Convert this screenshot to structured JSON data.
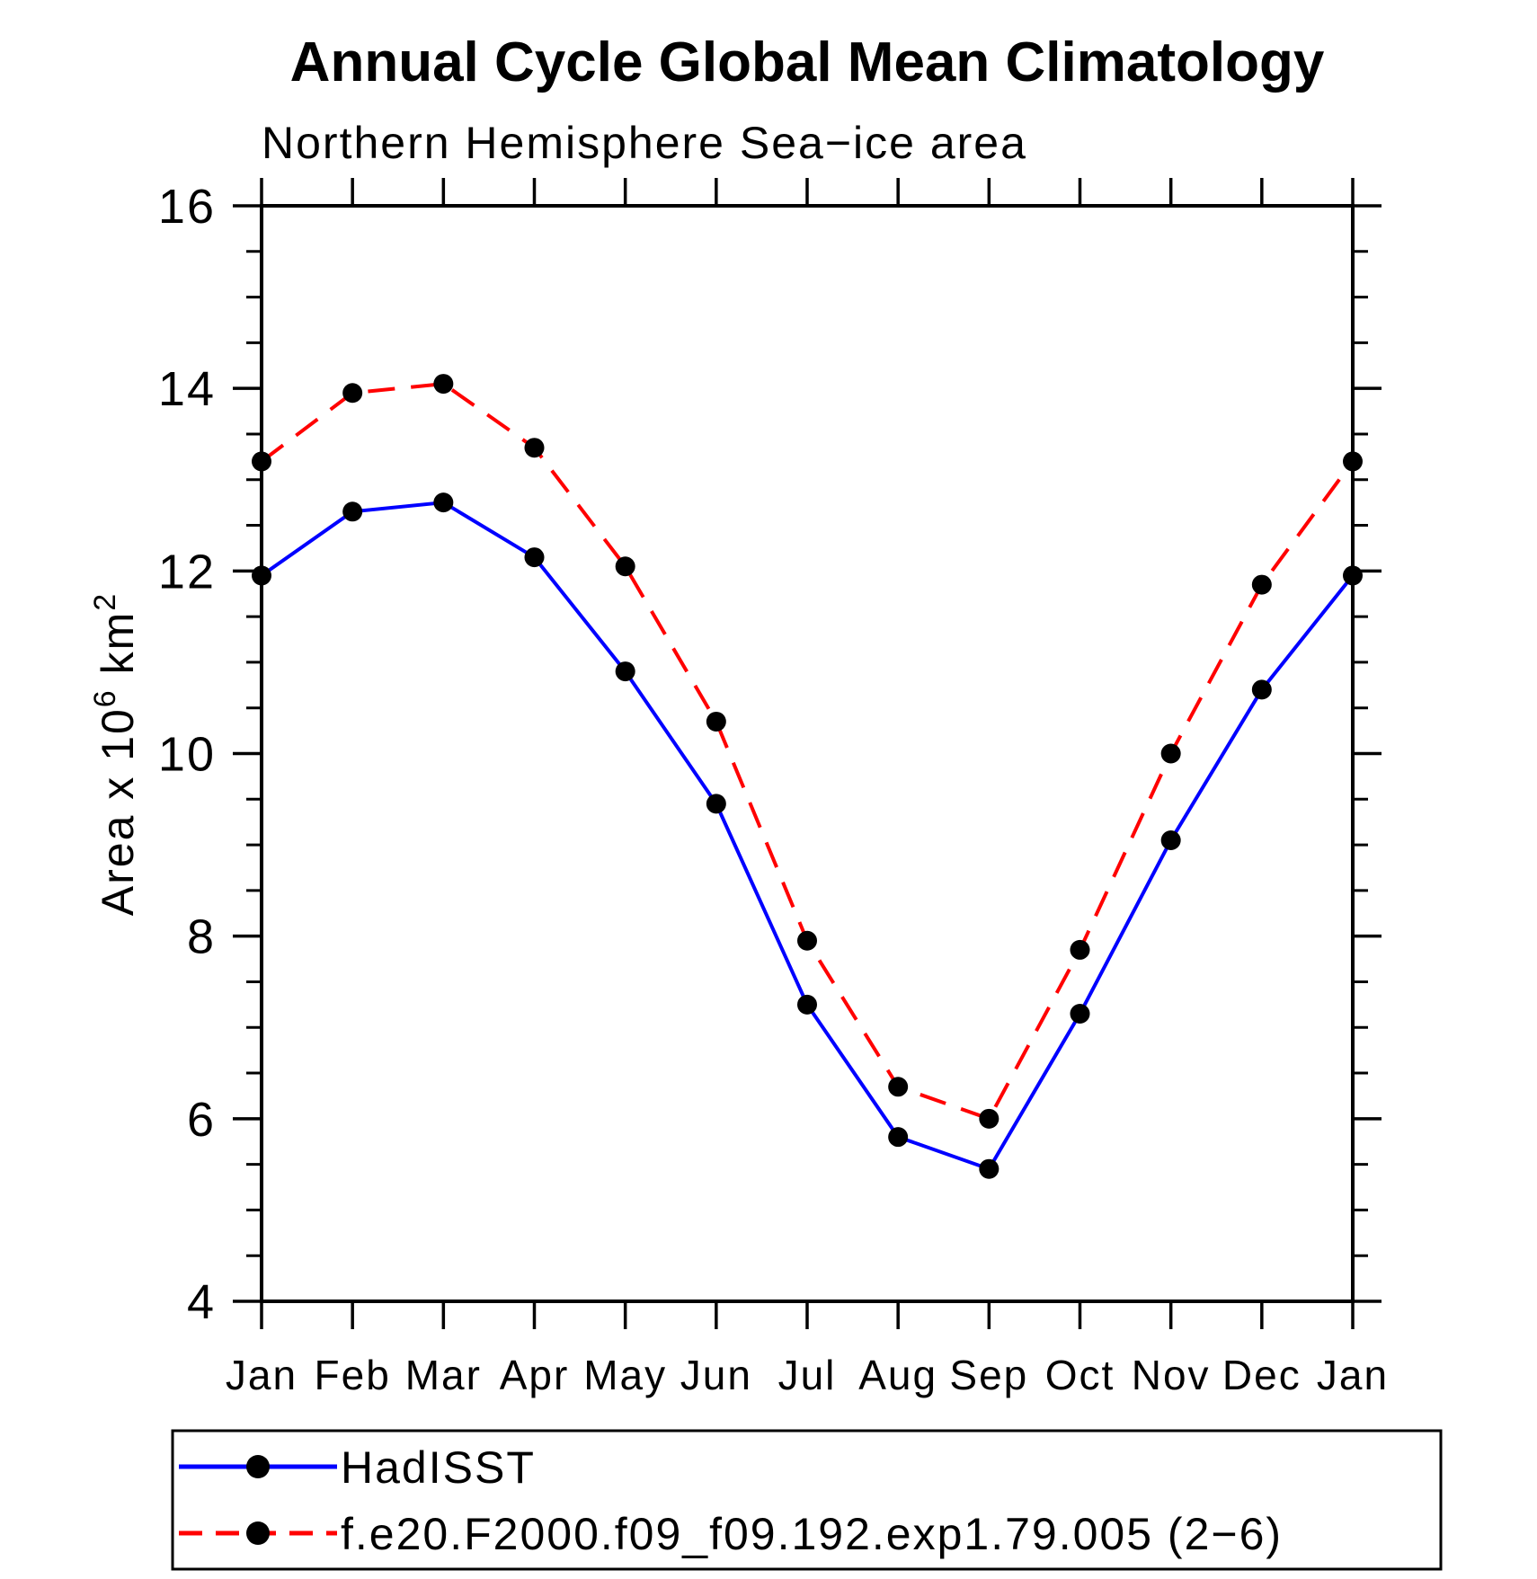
{
  "header": {
    "title": "Annual Cycle Global Mean Climatology",
    "subtitle": "Northern Hemisphere Sea−ice area"
  },
  "chart_data": {
    "type": "line",
    "title": "Annual Cycle Global Mean Climatology",
    "subtitle": "Northern Hemisphere Sea−ice area",
    "categories": [
      "Jan",
      "Feb",
      "Mar",
      "Apr",
      "May",
      "Jun",
      "Jul",
      "Aug",
      "Sep",
      "Oct",
      "Nov",
      "Dec",
      "Jan"
    ],
    "series": [
      {
        "name": "HadISST",
        "color": "#0000ff",
        "line_style": "solid",
        "marker": "filled-circle",
        "marker_color": "#000000",
        "values": [
          11.95,
          12.65,
          12.75,
          12.15,
          10.9,
          9.45,
          7.25,
          5.8,
          5.45,
          7.15,
          9.05,
          10.7,
          11.95
        ]
      },
      {
        "name": "f.e20.F2000.f09_f09.192.exp1.79.005 (2−6)",
        "color": "#ff0000",
        "line_style": "dashed",
        "marker": "filled-circle",
        "marker_color": "#000000",
        "values": [
          13.2,
          13.95,
          14.05,
          13.35,
          12.05,
          10.35,
          7.95,
          6.35,
          6.0,
          7.85,
          10.0,
          11.85,
          13.2
        ]
      }
    ],
    "xlabel": "",
    "ylabel": "Area x 10^6 km^2",
    "ylabel_parts": {
      "base": "Area x 10",
      "exponent": "6",
      "unit": " km",
      "unit_exponent": "2"
    },
    "ylim": [
      4,
      16
    ],
    "ytick_major": [
      16,
      14,
      12,
      10,
      8,
      6,
      4
    ],
    "ytick_minor_step": 0.5,
    "grid": false,
    "legend_position": "bottom-box"
  },
  "colors": {
    "axis": "#000000",
    "background": "#ffffff",
    "hadisst_line": "#0000ff",
    "model_line": "#ff0000",
    "marker": "#000000"
  }
}
